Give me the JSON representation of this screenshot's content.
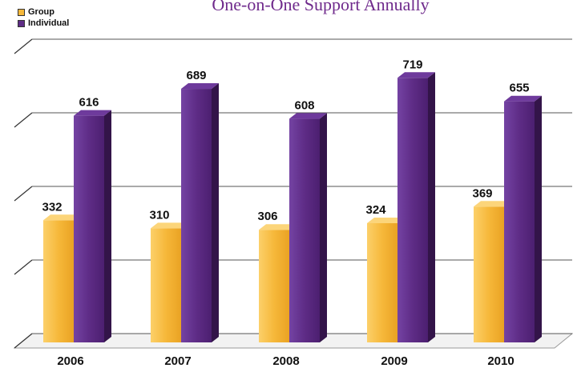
{
  "chart_data": {
    "type": "bar",
    "title": "One-on-One Support Annually",
    "categories": [
      "2006",
      "2007",
      "2008",
      "2009",
      "2010"
    ],
    "series": [
      {
        "name": "Group",
        "values": [
          332,
          310,
          306,
          324,
          369
        ]
      },
      {
        "name": "Individual",
        "values": [
          616,
          689,
          608,
          719,
          655
        ]
      }
    ],
    "colors": {
      "Group": "#f6b83a",
      "Individual": "#5e2c86"
    },
    "ylim": [
      0,
      800
    ],
    "grid": true,
    "legend_position": "top-left"
  }
}
